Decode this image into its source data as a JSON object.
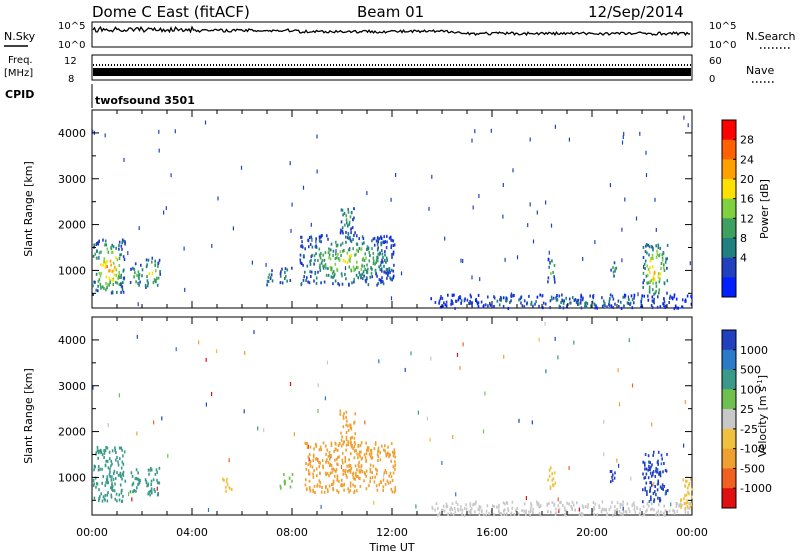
{
  "header": {
    "station": "Dome C East (fitACF)",
    "beam": "Beam 01",
    "date": "12/Sep/2014"
  },
  "top_panels": {
    "nsky_label": "N.Sky",
    "nsky_ticks": [
      "10^5",
      "10^0"
    ],
    "nsearch_label": "N.Search",
    "nsearch_ticks": [
      "10^5",
      "10^0"
    ],
    "freq_label_1": "Freq.",
    "freq_label_2": "[MHz]",
    "freq_ticks": [
      "12",
      "8"
    ],
    "nave_label": "Nave",
    "nave_ticks": [
      "60",
      "0"
    ],
    "cpid_label": "CPID",
    "cpid_value": "twofsound 3501"
  },
  "chart_data": [
    {
      "type": "heatmap",
      "title": "",
      "xlabel": "Time UT",
      "ylabel": "Slant Range [km]",
      "xlim": [
        0,
        24
      ],
      "ylim": [
        180,
        4500
      ],
      "x_tick_labels": [
        "00:00",
        "04:00",
        "08:00",
        "12:00",
        "16:00",
        "20:00",
        "00:00"
      ],
      "y_tick_labels": [
        "1000",
        "2000",
        "3000",
        "4000"
      ],
      "colorbar_label": "Power [dB]",
      "colorbar_ticks": [
        "28",
        "24",
        "20",
        "16",
        "12",
        "8",
        "4"
      ],
      "colorbar_colors": [
        "#ff0000",
        "#ff6000",
        "#ffa000",
        "#ffe000",
        "#80d040",
        "#40a060",
        "#208080",
        "#2040c0",
        "#0020ff"
      ],
      "echo_regions": [
        {
          "t0": 0.0,
          "t1": 1.3,
          "r0": 500,
          "r1": 1700,
          "level": 0.85
        },
        {
          "t0": 1.5,
          "t1": 2.0,
          "r0": 700,
          "r1": 1200,
          "level": 0.5
        },
        {
          "t0": 2.1,
          "t1": 2.7,
          "r0": 650,
          "r1": 1300,
          "level": 0.75
        },
        {
          "t0": 6.9,
          "t1": 7.2,
          "r0": 700,
          "r1": 1100,
          "level": 0.35
        },
        {
          "t0": 7.5,
          "t1": 8.0,
          "r0": 750,
          "r1": 1100,
          "level": 0.45
        },
        {
          "t0": 8.3,
          "t1": 12.1,
          "r0": 700,
          "r1": 1800,
          "level": 0.6
        },
        {
          "t0": 9.9,
          "t1": 10.5,
          "r0": 1800,
          "r1": 2500,
          "level": 0.45
        },
        {
          "t0": 13.5,
          "t1": 24.0,
          "r0": 200,
          "r1": 500,
          "level": 0.25
        },
        {
          "t0": 18.2,
          "t1": 18.5,
          "r0": 750,
          "r1": 1300,
          "level": 0.55
        },
        {
          "t0": 20.7,
          "t1": 21.0,
          "r0": 900,
          "r1": 1200,
          "level": 0.4
        },
        {
          "t0": 22.0,
          "t1": 23.0,
          "r0": 500,
          "r1": 1600,
          "level": 0.85
        }
      ]
    },
    {
      "type": "heatmap",
      "title": "",
      "xlabel": "Time UT",
      "ylabel": "Slant Range [km]",
      "xlim": [
        0,
        24
      ],
      "ylim": [
        180,
        4500
      ],
      "x_tick_labels": [
        "00:00",
        "04:00",
        "08:00",
        "12:00",
        "16:00",
        "20:00",
        "00:00"
      ],
      "y_tick_labels": [
        "1000",
        "2000",
        "3000",
        "4000"
      ],
      "colorbar_label": "Velocity [m s^-1]",
      "colorbar_ticks": [
        "1000",
        "500",
        "100",
        "25",
        "-25",
        "-100",
        "-500",
        "-1000"
      ],
      "colorbar_colors": [
        "#2040c0",
        "#2a7ac8",
        "#3a9a8a",
        "#70c050",
        "#c8c8c8",
        "#f0c040",
        "#f0a030",
        "#f06020",
        "#e01010"
      ],
      "echo_regions": [
        {
          "t0": 0.0,
          "t1": 1.3,
          "r0": 500,
          "r1": 1700,
          "velocity": 100
        },
        {
          "t0": 1.5,
          "t1": 2.0,
          "r0": 700,
          "r1": 1200,
          "velocity": 100
        },
        {
          "t0": 2.1,
          "t1": 2.7,
          "r0": 650,
          "r1": 1300,
          "velocity": 100
        },
        {
          "t0": 5.2,
          "t1": 5.6,
          "r0": 700,
          "r1": 1000,
          "velocity": -100
        },
        {
          "t0": 7.5,
          "t1": 8.0,
          "r0": 750,
          "r1": 1100,
          "velocity": 25
        },
        {
          "t0": 8.5,
          "t1": 12.1,
          "r0": 700,
          "r1": 1800,
          "velocity": -500
        },
        {
          "t0": 9.9,
          "t1": 10.5,
          "r0": 1800,
          "r1": 2500,
          "velocity": -500
        },
        {
          "t0": 13.5,
          "t1": 24.0,
          "r0": 200,
          "r1": 500,
          "velocity": -25
        },
        {
          "t0": 18.2,
          "t1": 18.5,
          "r0": 750,
          "r1": 1300,
          "velocity": -100
        },
        {
          "t0": 20.7,
          "t1": 21.0,
          "r0": 900,
          "r1": 1200,
          "velocity": 1000
        },
        {
          "t0": 22.0,
          "t1": 23.0,
          "r0": 500,
          "r1": 1600,
          "velocity": 1000
        },
        {
          "t0": 23.5,
          "t1": 24.0,
          "r0": 300,
          "r1": 1000,
          "velocity": -100
        }
      ]
    }
  ]
}
